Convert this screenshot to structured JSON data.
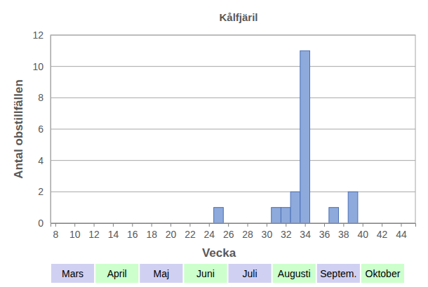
{
  "chart_data": {
    "type": "bar",
    "title": "Kålfjäril",
    "x_label": "Vecka",
    "y_label": "Antal obstillfällen",
    "x": [
      25,
      31,
      32,
      33,
      34,
      37,
      39
    ],
    "values": [
      1,
      1,
      1,
      2,
      11,
      1,
      2
    ],
    "color": "#8eaadc",
    "xlim": [
      7.5,
      45.5
    ],
    "xticks": [
      8,
      10,
      12,
      14,
      16,
      18,
      20,
      22,
      24,
      26,
      28,
      30,
      32,
      34,
      36,
      38,
      40,
      42,
      44
    ],
    "ylim": [
      0,
      12
    ],
    "yticks": [
      0,
      2,
      4,
      6,
      8,
      10,
      12
    ],
    "grid": true,
    "annotations": [
      "Mars",
      "April",
      "Maj",
      "Juni",
      "Juli",
      "Augusti",
      "Septem.",
      "Oktober"
    ]
  }
}
